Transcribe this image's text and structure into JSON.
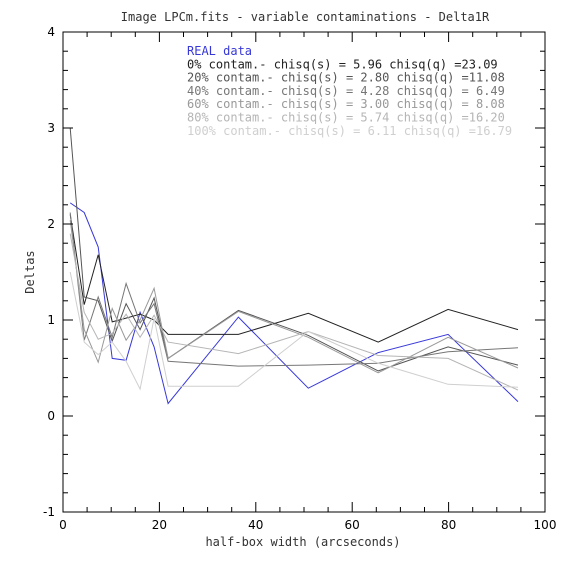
{
  "chart_data": {
    "type": "line",
    "title": "Image LPCm.fits - variable contaminations - Delta1R",
    "xlabel": "half-box width (arcseconds)",
    "ylabel": "Deltas",
    "xlim": [
      0,
      100
    ],
    "ylim": [
      -1,
      4
    ],
    "x_ticks": [
      "0",
      "20",
      "40",
      "60",
      "80",
      "100"
    ],
    "y_ticks": [
      "-1",
      "0",
      "1",
      "2",
      "3",
      "4"
    ],
    "grid": false,
    "legend_placement": "top-right",
    "series": [
      {
        "name": "REAL data",
        "legend_label": "REAL data",
        "color": "#3838d8",
        "x": [
          1.5,
          4.4,
          7.3,
          10.2,
          13.1,
          16,
          18.9,
          21.8,
          36.4,
          50.9,
          65.4,
          79.9,
          94.4
        ],
        "y": [
          2.22,
          2.12,
          1.76,
          0.6,
          0.58,
          1.08,
          0.72,
          0.13,
          1.03,
          0.29,
          0.66,
          0.85,
          0.15
        ]
      },
      {
        "name": "0% contam.",
        "legend_label": "0% contam.- chisq(s) = 5.96 chisq(q) =23.09",
        "color": "#222222",
        "x": [
          1.5,
          4.4,
          7.3,
          10.2,
          13.1,
          16,
          18.9,
          21.8,
          36.4,
          50.9,
          65.4,
          79.9,
          94.4
        ],
        "y": [
          2.1,
          1.16,
          1.68,
          0.98,
          1.02,
          1.06,
          1.0,
          0.85,
          0.85,
          1.07,
          0.77,
          1.11,
          0.9
        ]
      },
      {
        "name": "20% contam.",
        "legend_label": "20% contam.- chisq(s) = 2.80 chisq(q) =11.08",
        "color": "#555555",
        "x": [
          1.5,
          4.4,
          7.3,
          10.2,
          13.1,
          16,
          18.9,
          21.8,
          36.4,
          50.9,
          65.4,
          79.9,
          94.4
        ],
        "y": [
          3.0,
          1.24,
          1.2,
          0.78,
          1.17,
          0.9,
          1.23,
          0.6,
          1.1,
          0.84,
          0.47,
          0.72,
          0.53
        ]
      },
      {
        "name": "40% contam.",
        "legend_label": "40% contam.- chisq(s) = 4.28 chisq(q) = 6.49",
        "color": "#777777",
        "x": [
          1.5,
          4.4,
          7.3,
          10.2,
          13.1,
          16,
          18.9,
          21.8,
          36.4,
          50.9,
          65.4,
          79.9,
          94.4
        ],
        "y": [
          2.12,
          0.79,
          1.24,
          0.82,
          1.38,
          0.97,
          1.17,
          0.57,
          0.52,
          0.53,
          0.55,
          0.67,
          0.71
        ]
      },
      {
        "name": "60% contam.",
        "legend_label": "60% contam.- chisq(s) = 3.00 chisq(q) = 8.08",
        "color": "#999999",
        "x": [
          1.5,
          4.4,
          7.3,
          10.2,
          13.1,
          16,
          18.9,
          21.8,
          36.4,
          50.9,
          65.4,
          79.9,
          94.4
        ],
        "y": [
          2.04,
          0.9,
          0.56,
          1.12,
          0.79,
          1.0,
          1.33,
          0.6,
          1.09,
          0.82,
          0.45,
          0.82,
          0.5
        ]
      },
      {
        "name": "80% contam.",
        "legend_label": "80% contam.- chisq(s) = 5.74 chisq(q) =16.20",
        "color": "#b5b5b5",
        "x": [
          1.5,
          4.4,
          7.3,
          10.2,
          13.1,
          16,
          18.9,
          21.8,
          36.4,
          50.9,
          65.4,
          79.9,
          94.4
        ],
        "y": [
          1.9,
          1.08,
          0.8,
          0.86,
          1.06,
          0.82,
          1.05,
          0.77,
          0.65,
          0.88,
          0.63,
          0.6,
          0.27
        ]
      },
      {
        "name": "100% contam.",
        "legend_label": "100% contam.- chisq(s) = 6.11 chisq(q) =16.79",
        "color": "#cfcfcf",
        "x": [
          1.5,
          4.4,
          7.3,
          10.2,
          13.1,
          16,
          18.9,
          21.8,
          36.4,
          50.9,
          65.4,
          79.9,
          94.4
        ],
        "y": [
          1.5,
          0.77,
          0.64,
          0.77,
          0.57,
          0.28,
          1.02,
          0.31,
          0.31,
          0.88,
          0.55,
          0.33,
          0.3
        ]
      }
    ]
  }
}
